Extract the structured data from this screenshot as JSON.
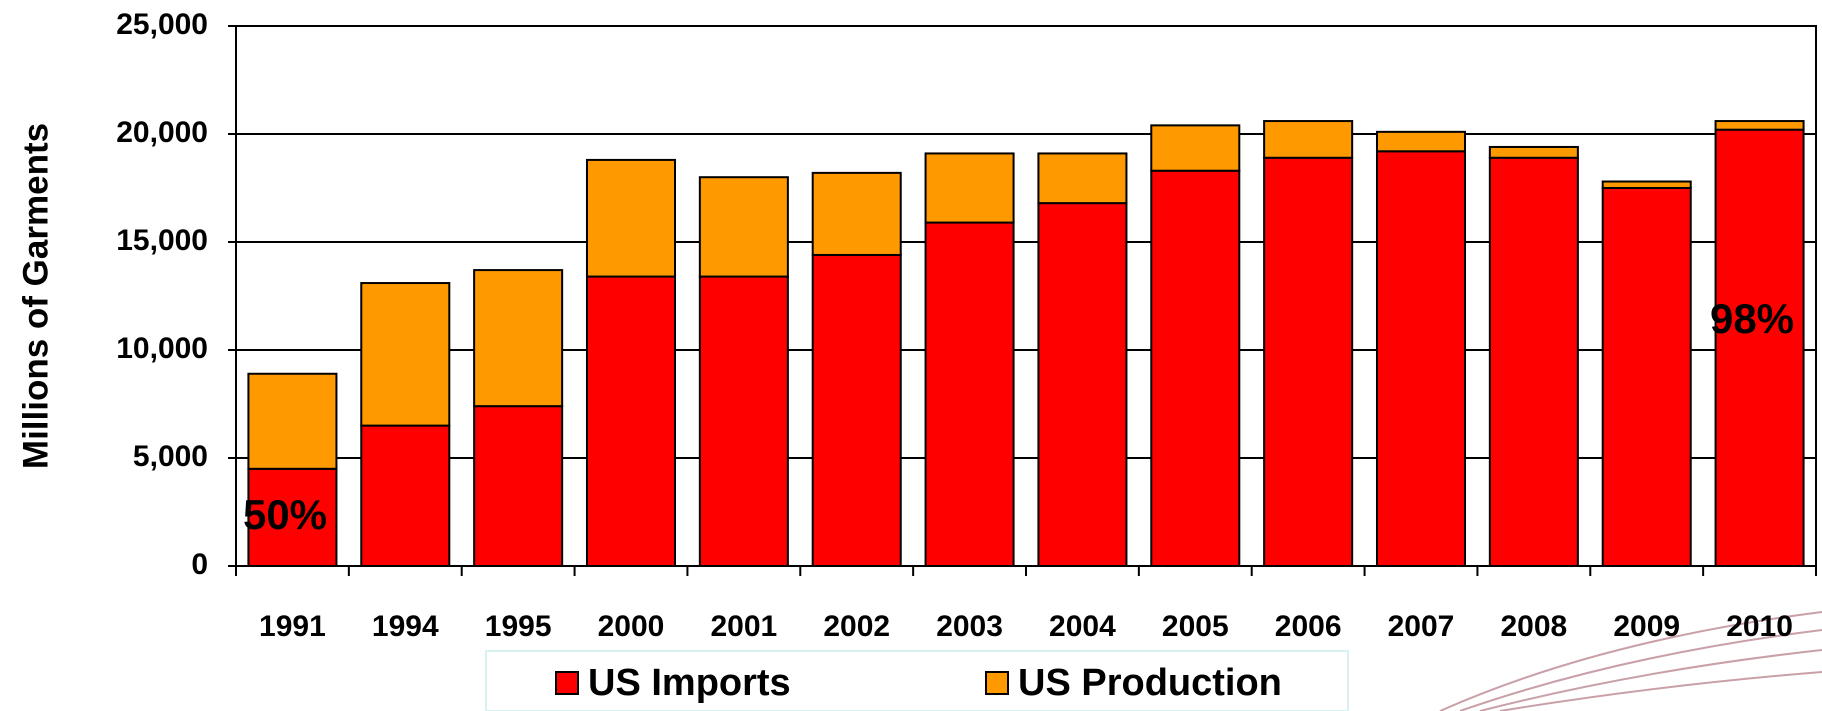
{
  "chart_data": {
    "type": "stacked_bar",
    "y_label": "Millions of Garments",
    "categories": [
      "1991",
      "1994",
      "1995",
      "2000",
      "2001",
      "2002",
      "2003",
      "2004",
      "2005",
      "2006",
      "2007",
      "2008",
      "2009",
      "2010"
    ],
    "series": [
      {
        "name": "US Imports",
        "color": "#ff0000",
        "values": [
          4500,
          6500,
          7400,
          13400,
          13400,
          14400,
          15900,
          16800,
          18300,
          18900,
          19200,
          18900,
          17500,
          20200
        ]
      },
      {
        "name": "US Production",
        "color": "#ff9900",
        "values": [
          4400,
          6600,
          6300,
          5400,
          4600,
          3800,
          3200,
          2300,
          2100,
          1700,
          900,
          500,
          300,
          400
        ]
      }
    ],
    "annotations": [
      "50%",
      "98%"
    ],
    "ylim": [
      0,
      25000
    ],
    "yticks": [
      0,
      {
        "value": 5000,
        "label": "5,000"
      },
      {
        "value": 10000,
        "label": "10,000"
      },
      {
        "value": 15000,
        "label": "15,000"
      },
      {
        "value": 20000,
        "label": "20,000"
      },
      {
        "value": 25000,
        "label": "25,000"
      }
    ],
    "grid": true
  }
}
